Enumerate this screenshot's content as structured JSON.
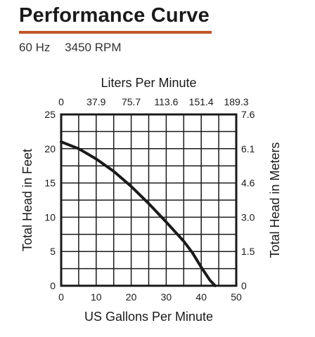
{
  "header": {
    "title": "Performance Curve",
    "accent_color": "#c0562a",
    "frequency": "60 Hz",
    "rpm": "3450 RPM"
  },
  "chart_data": {
    "type": "line",
    "title": "Performance Curve",
    "xlabel": "US Gallons Per Minute",
    "ylabel": "Total Head in Feet",
    "x2label": "Liters Per Minute",
    "y2label": "Total Head in Meters",
    "xlim": [
      0,
      50
    ],
    "ylim": [
      0,
      25
    ],
    "x_ticks": [
      "0",
      "10",
      "20",
      "30",
      "40",
      "50"
    ],
    "y_ticks": [
      "0",
      "5",
      "10",
      "15",
      "20",
      "25"
    ],
    "x2_ticks": [
      "0",
      "37.9",
      "75.7",
      "113.6",
      "151.4",
      "189.3"
    ],
    "y2_ticks": [
      "0",
      "1.5",
      "3.0",
      "4.6",
      "6.1",
      "7.6"
    ],
    "grid": true,
    "series": [
      {
        "x": [
          0,
          5,
          10,
          15,
          20,
          25,
          30,
          35,
          37.5,
          40,
          42.5,
          44
        ],
        "y": [
          21,
          20.0,
          18.5,
          16.7,
          14.5,
          12.0,
          9.3,
          6.5,
          4.8,
          2.7,
          0.8,
          0
        ]
      }
    ]
  }
}
